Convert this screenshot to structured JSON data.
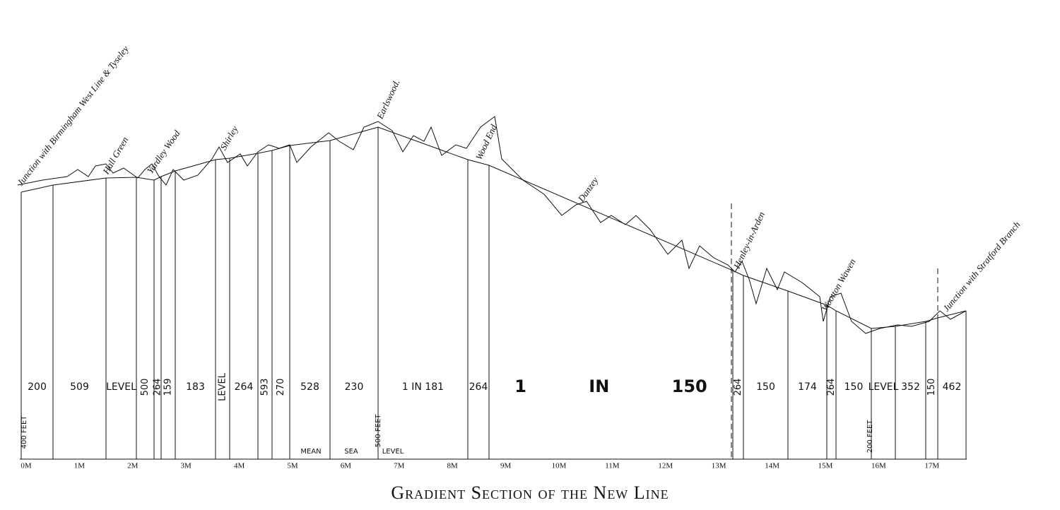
{
  "title": "Gradient Section of the New Line",
  "stations": [
    "Junction with Birmingham West Line & Tyseley",
    "Hall Green",
    "Yardley Wood",
    "Shirley",
    "Earlswood.",
    "Wood End",
    "Danzey",
    "Henley-in-Arden",
    "Wootton Wawen",
    "Junction with Stratford Branch"
  ],
  "gradients": [
    "200",
    "509",
    "LEVEL",
    "500",
    "264",
    "159",
    "183",
    "LEVEL",
    "264",
    "593",
    "270",
    "528",
    "230",
    "1 IN 181",
    "264",
    "1 IN 150",
    "264",
    "150",
    "174",
    "264",
    "150",
    "LEVEL",
    "352",
    "150",
    "462"
  ],
  "datum_labels": [
    "400 FEET",
    "500 FEET",
    "200 FEET"
  ],
  "sea_level": [
    "MEAN",
    "SEA",
    "LEVEL"
  ],
  "miles": [
    "0M",
    "1M",
    "2M",
    "3M",
    "4M",
    "5M",
    "6M",
    "7M",
    "8M",
    "9M",
    "10M",
    "11M",
    "12M",
    "13M",
    "14M",
    "15M",
    "16M",
    "17M"
  ]
}
